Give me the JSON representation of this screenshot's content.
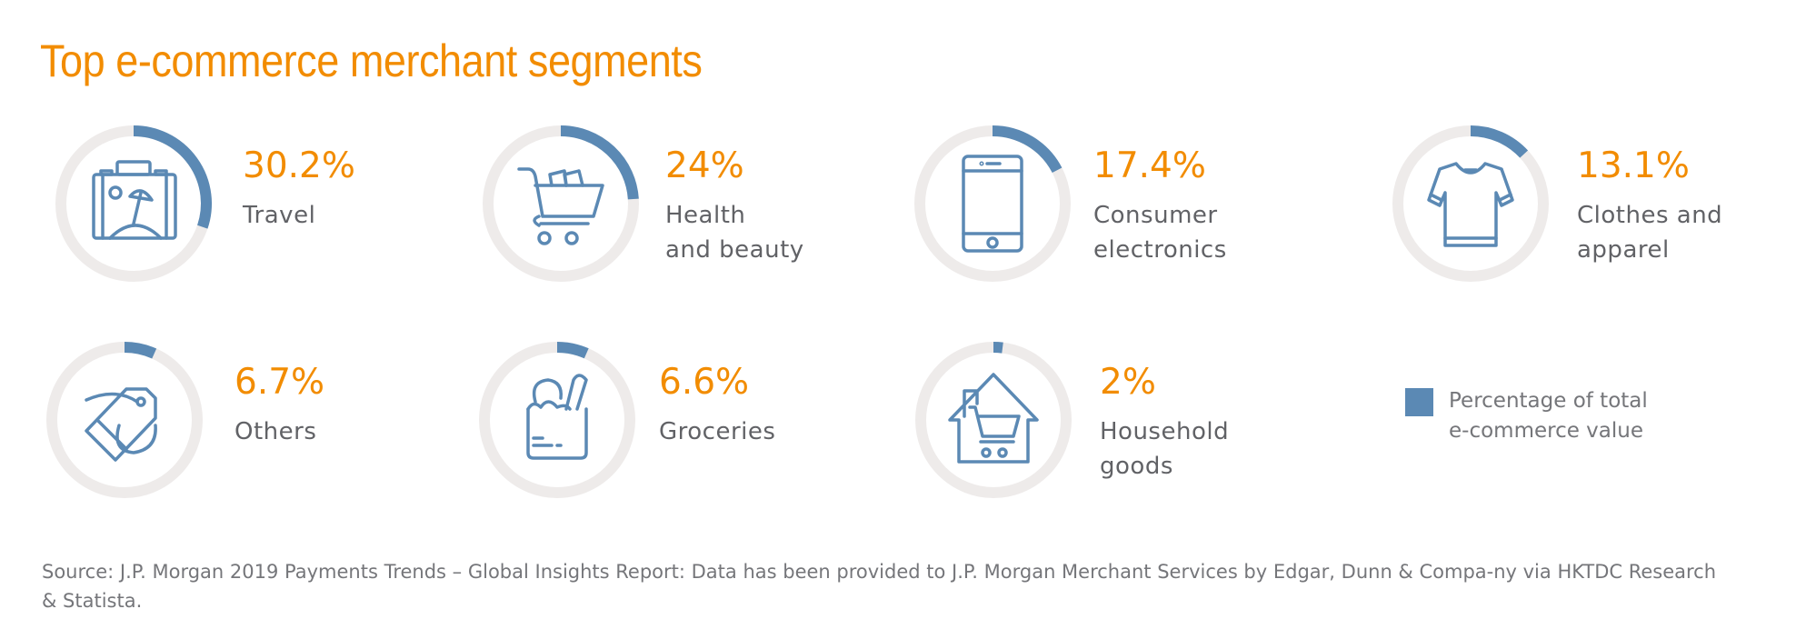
{
  "title": "Top e-commerce merchant segments",
  "colors": {
    "accent": "#F28C00",
    "arc": "#5B89B4",
    "track": "#EEEBEA",
    "text": "#616266"
  },
  "chart_data": {
    "type": "pie",
    "subtype": "radial-progress-rings",
    "title": "Top e-commerce merchant segments",
    "unit": "%",
    "categories": [
      "Travel",
      "Health and beauty",
      "Consumer electronics",
      "Clothes and apparel",
      "Others",
      "Groceries",
      "Household goods"
    ],
    "values": [
      30.2,
      24,
      17.4,
      13.1,
      6.7,
      6.6,
      2
    ],
    "legend": {
      "label": "Percentage of total e-commerce value",
      "placement": "bottom-right"
    }
  },
  "segments": [
    {
      "value": 30.2,
      "pct_label": "30.2%",
      "label": "Travel",
      "icon": "suitcase-beach-icon"
    },
    {
      "value": 24,
      "pct_label": "24%",
      "label": "Health\nand beauty",
      "icon": "shopping-cart-icon"
    },
    {
      "value": 17.4,
      "pct_label": "17.4%",
      "label": "Consumer\nelectronics",
      "icon": "smartphone-icon"
    },
    {
      "value": 13.1,
      "pct_label": "13.1%",
      "label": "Clothes and\napparel",
      "icon": "t-shirt-icon"
    },
    {
      "value": 6.7,
      "pct_label": "6.7%",
      "label": "Others",
      "icon": "price-tag-icon"
    },
    {
      "value": 6.6,
      "pct_label": "6.6%",
      "label": "Groceries",
      "icon": "grocery-bag-icon"
    },
    {
      "value": 2,
      "pct_label": "2%",
      "label": "Household\ngoods",
      "icon": "house-cart-icon"
    }
  ],
  "legend": {
    "label": "Percentage of total\ne-commerce value"
  },
  "source": "Source: J.P. Morgan 2019 Payments Trends – Global Insights Report: Data has been provided to J.P. Morgan Merchant Services by Edgar, Dunn & Compa-ny via HKTDC Research & Statista."
}
